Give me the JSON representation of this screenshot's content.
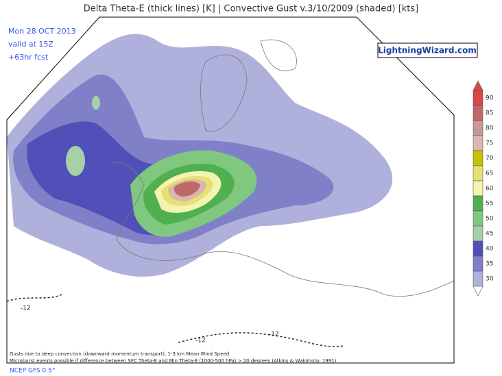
{
  "header": {
    "title": "Delta Theta-E (thick lines) [K]  |  Convective Gust v.3/10/2009 (shaded) [kts]",
    "date": "Mon 28 OCT 2013",
    "valid": "valid at 15Z",
    "forecast": "+63hr fcst",
    "logo": "LightningWizard.com"
  },
  "legend": {
    "labels": [
      "90",
      "85",
      "80",
      "75",
      "70",
      "65",
      "60",
      "55",
      "50",
      "45",
      "40",
      "35",
      "30"
    ],
    "colors": [
      "#d84848",
      "#c06868",
      "#c89898",
      "#d8b8b0",
      "#c8c000",
      "#e8e070",
      "#f4f4b0",
      "#50b050",
      "#80c880",
      "#a8d0a8",
      "#5050b8",
      "#8080c8",
      "#b0b0dc"
    ]
  },
  "contour_labels": [
    "-12",
    "-12",
    "-12"
  ],
  "footer": {
    "note1": "Gusts due to deep convection (downward momentum transport), 1-3 km Mean Wind Speed",
    "note2": "Microburst events possible if difference between SFC Theta-E and Min Theta-E (1000-500 hPa) > 20 degrees (Atkins & Wakimoto, 1991)",
    "source": "NCEP GFS 0.5°"
  }
}
